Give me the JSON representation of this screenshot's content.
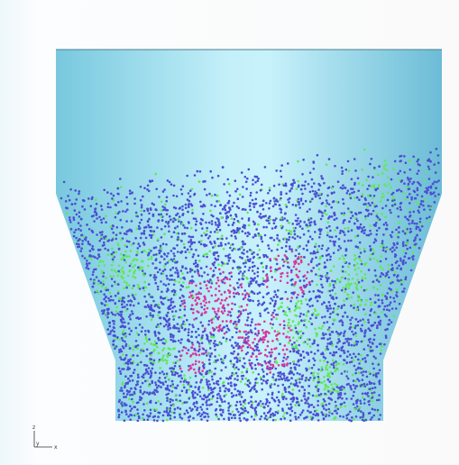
{
  "axes": {
    "z": "z",
    "y": "y",
    "x": "x"
  }
}
